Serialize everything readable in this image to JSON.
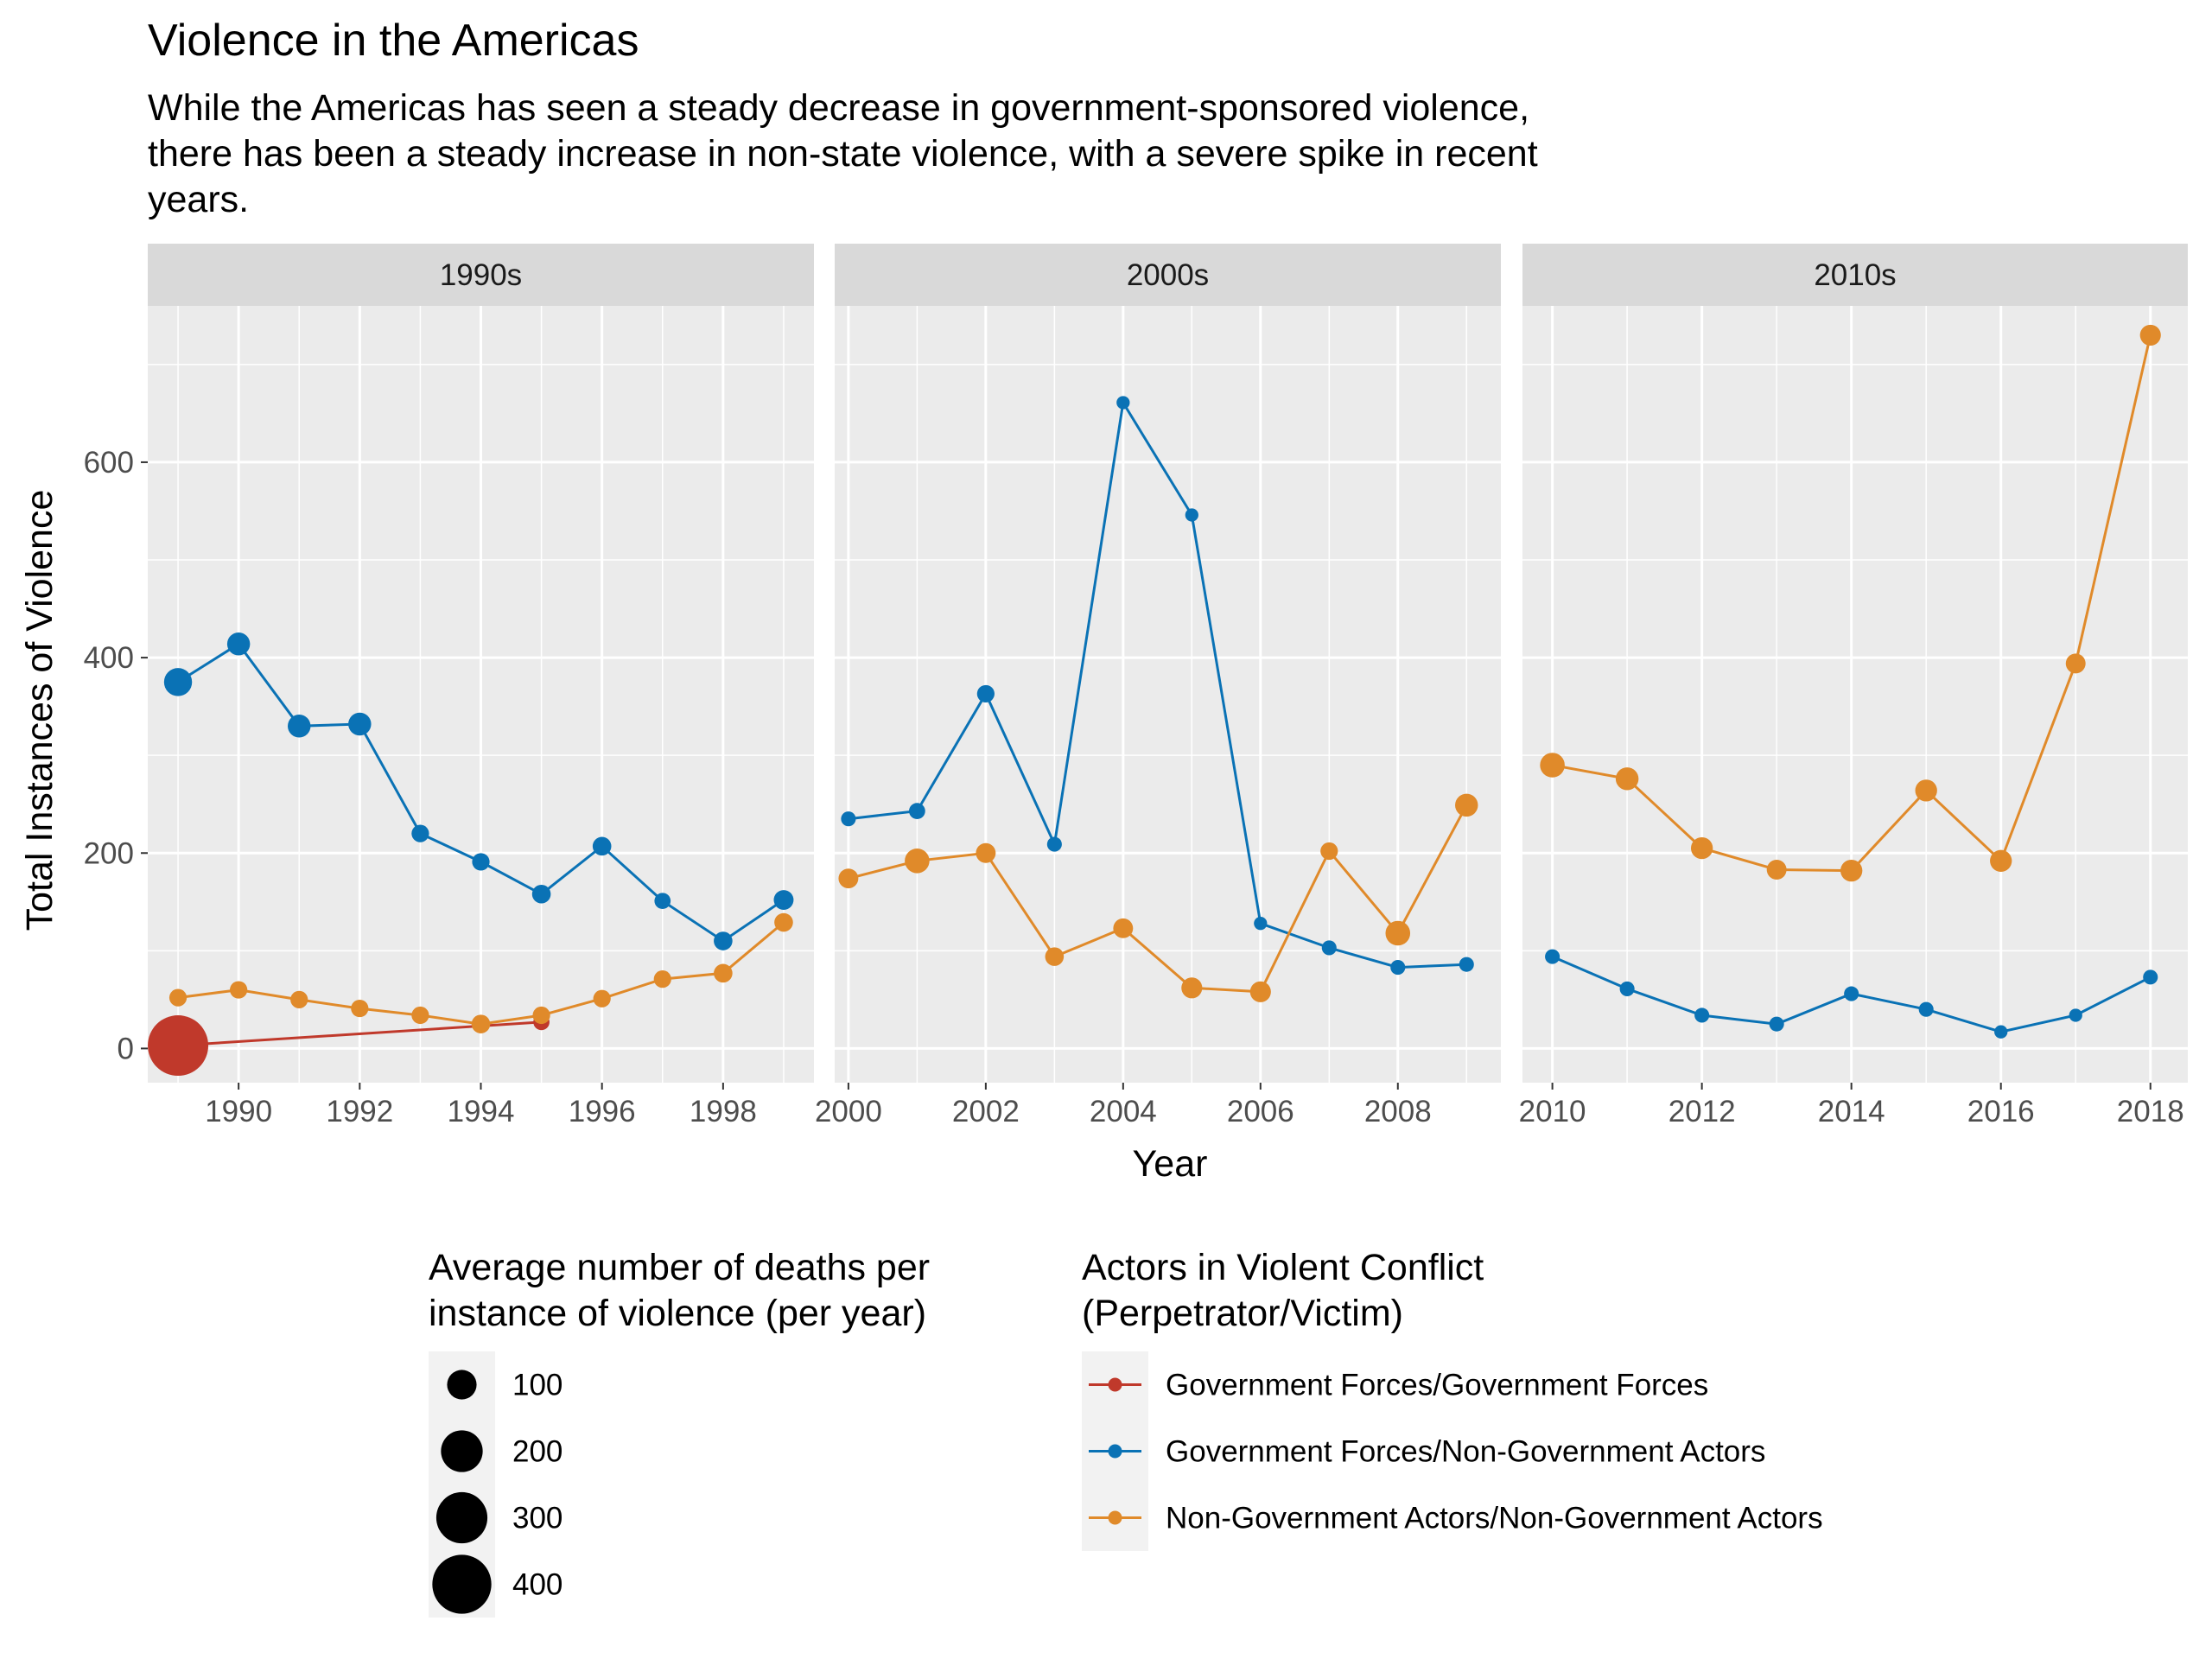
{
  "chart_data": {
    "type": "line",
    "title": "Violence in the Americas",
    "subtitle_lines": [
      "While the Americas has seen a steady decrease in government-sponsored violence,",
      "there has been a steady increase in non-state violence, with a severe spike in recent",
      "years."
    ],
    "xlabel": "Year",
    "ylabel": "Total Instances of Violence",
    "ylim": [
      -35,
      760
    ],
    "y_ticks": [
      0,
      200,
      400,
      600
    ],
    "grid": true,
    "legend_position": "bottom",
    "panels": [
      {
        "name": "1990s",
        "xlim": [
          1988.5,
          1999.5
        ],
        "x_ticks": [
          1990,
          1992,
          1994,
          1996,
          1998
        ]
      },
      {
        "name": "2000s",
        "xlim": [
          1999.8,
          2009.5
        ],
        "x_ticks": [
          2000,
          2002,
          2004,
          2006,
          2008
        ]
      },
      {
        "name": "2010s",
        "xlim": [
          2009.6,
          2018.5
        ],
        "x_ticks": [
          2010,
          2012,
          2014,
          2016,
          2018
        ]
      }
    ],
    "series": [
      {
        "name": "Government Forces/Government Forces",
        "color": "#c0392b",
        "points": [
          {
            "x": 1989,
            "y": 3,
            "deaths": 420
          },
          {
            "x": 1995,
            "y": 27,
            "deaths": 30
          }
        ]
      },
      {
        "name": "Government Forces/Non-Government Actors",
        "color": "#0a72b5",
        "points": [
          {
            "x": 1989,
            "y": 375,
            "deaths": 90
          },
          {
            "x": 1990,
            "y": 414,
            "deaths": 60
          },
          {
            "x": 1991,
            "y": 330,
            "deaths": 60
          },
          {
            "x": 1992,
            "y": 332,
            "deaths": 60
          },
          {
            "x": 1993,
            "y": 220,
            "deaths": 35
          },
          {
            "x": 1994,
            "y": 191,
            "deaths": 35
          },
          {
            "x": 1995,
            "y": 158,
            "deaths": 40
          },
          {
            "x": 1996,
            "y": 207,
            "deaths": 40
          },
          {
            "x": 1997,
            "y": 151,
            "deaths": 30
          },
          {
            "x": 1998,
            "y": 110,
            "deaths": 40
          },
          {
            "x": 1999,
            "y": 152,
            "deaths": 45
          },
          {
            "x": 2000,
            "y": 235,
            "deaths": 25
          },
          {
            "x": 2001,
            "y": 243,
            "deaths": 30
          },
          {
            "x": 2002,
            "y": 363,
            "deaths": 35
          },
          {
            "x": 2003,
            "y": 209,
            "deaths": 25
          },
          {
            "x": 2004,
            "y": 661,
            "deaths": 20
          },
          {
            "x": 2005,
            "y": 546,
            "deaths": 20
          },
          {
            "x": 2006,
            "y": 128,
            "deaths": 20
          },
          {
            "x": 2007,
            "y": 103,
            "deaths": 25
          },
          {
            "x": 2008,
            "y": 83,
            "deaths": 25
          },
          {
            "x": 2009,
            "y": 86,
            "deaths": 25
          },
          {
            "x": 2010,
            "y": 94,
            "deaths": 25
          },
          {
            "x": 2011,
            "y": 61,
            "deaths": 25
          },
          {
            "x": 2012,
            "y": 34,
            "deaths": 25
          },
          {
            "x": 2013,
            "y": 25,
            "deaths": 25
          },
          {
            "x": 2014,
            "y": 56,
            "deaths": 25
          },
          {
            "x": 2015,
            "y": 40,
            "deaths": 25
          },
          {
            "x": 2016,
            "y": 17,
            "deaths": 20
          },
          {
            "x": 2017,
            "y": 34,
            "deaths": 20
          },
          {
            "x": 2018,
            "y": 73,
            "deaths": 25
          }
        ]
      },
      {
        "name": "Non-Government Actors/Non-Government Actors",
        "color": "#e08a2a",
        "points": [
          {
            "x": 1989,
            "y": 52,
            "deaths": 35
          },
          {
            "x": 1990,
            "y": 60,
            "deaths": 35
          },
          {
            "x": 1991,
            "y": 50,
            "deaths": 35
          },
          {
            "x": 1992,
            "y": 41,
            "deaths": 35
          },
          {
            "x": 1993,
            "y": 34,
            "deaths": 35
          },
          {
            "x": 1994,
            "y": 25,
            "deaths": 40
          },
          {
            "x": 1995,
            "y": 34,
            "deaths": 35
          },
          {
            "x": 1996,
            "y": 51,
            "deaths": 35
          },
          {
            "x": 1997,
            "y": 71,
            "deaths": 35
          },
          {
            "x": 1998,
            "y": 77,
            "deaths": 40
          },
          {
            "x": 1999,
            "y": 129,
            "deaths": 40
          },
          {
            "x": 2000,
            "y": 174,
            "deaths": 45
          },
          {
            "x": 2001,
            "y": 192,
            "deaths": 70
          },
          {
            "x": 2002,
            "y": 200,
            "deaths": 45
          },
          {
            "x": 2003,
            "y": 94,
            "deaths": 40
          },
          {
            "x": 2004,
            "y": 123,
            "deaths": 45
          },
          {
            "x": 2005,
            "y": 62,
            "deaths": 50
          },
          {
            "x": 2006,
            "y": 58,
            "deaths": 50
          },
          {
            "x": 2007,
            "y": 202,
            "deaths": 35
          },
          {
            "x": 2008,
            "y": 118,
            "deaths": 70
          },
          {
            "x": 2009,
            "y": 249,
            "deaths": 60
          },
          {
            "x": 2010,
            "y": 290,
            "deaths": 70
          },
          {
            "x": 2011,
            "y": 276,
            "deaths": 60
          },
          {
            "x": 2012,
            "y": 205,
            "deaths": 55
          },
          {
            "x": 2013,
            "y": 183,
            "deaths": 45
          },
          {
            "x": 2014,
            "y": 182,
            "deaths": 55
          },
          {
            "x": 2015,
            "y": 264,
            "deaths": 55
          },
          {
            "x": 2016,
            "y": 192,
            "deaths": 55
          },
          {
            "x": 2017,
            "y": 394,
            "deaths": 45
          },
          {
            "x": 2018,
            "y": 730,
            "deaths": 50
          }
        ]
      }
    ],
    "size_legend": {
      "title_lines": [
        "Average number of deaths per",
        "instance of violence (per year)"
      ],
      "items": [
        {
          "label": "100",
          "value": 100
        },
        {
          "label": "200",
          "value": 200
        },
        {
          "label": "300",
          "value": 300
        },
        {
          "label": "400",
          "value": 400
        }
      ]
    },
    "color_legend": {
      "title_lines": [
        "Actors in Violent Conflict",
        "(Perpetrator/Victim)"
      ]
    },
    "colors": {
      "panel_background": "#ebebeb",
      "strip_background": "#d9d9d9",
      "grid": "#ffffff",
      "text": "#000000",
      "tick_text": "#4d4d4d"
    }
  }
}
